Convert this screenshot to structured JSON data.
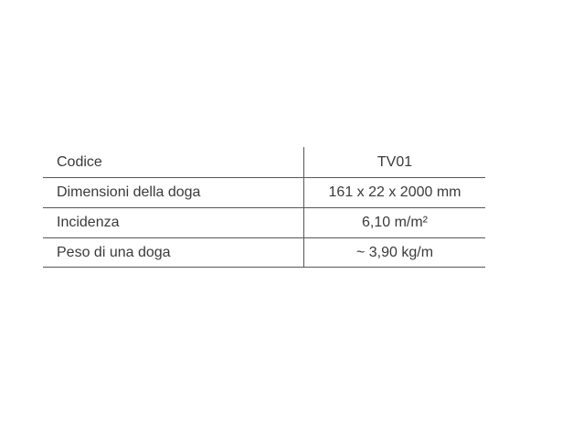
{
  "table": {
    "rows": [
      {
        "label": "Codice",
        "value": "TV01"
      },
      {
        "label": "Dimensioni della doga",
        "value": "161 x 22 x 2000 mm"
      },
      {
        "label": "Incidenza",
        "value": "6,10 m/m²"
      },
      {
        "label": "Peso di una doga",
        "value": "~ 3,90 kg/m"
      }
    ]
  },
  "colors": {
    "text": "#3a3a3b",
    "line": "#54575b",
    "background": "#ffffff"
  }
}
